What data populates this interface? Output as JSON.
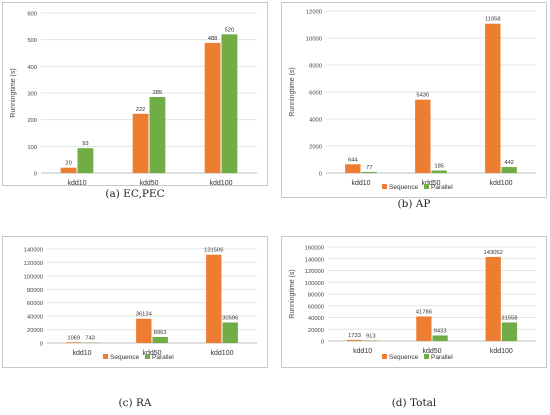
{
  "colors": {
    "sequence": "#ED7D31",
    "parallel": "#70AD47"
  },
  "chart_data": [
    {
      "type": "bar",
      "caption": "(a)  EC,PEC",
      "ylabel": "Runningtime (s)",
      "categories": [
        "kdd10",
        "kdd50",
        "kdd100"
      ],
      "ylim": [
        0,
        600
      ],
      "ytick_step": 100,
      "yticks": [
        "0",
        "100",
        "200",
        "300",
        "400",
        "500",
        "600"
      ],
      "legend": "none",
      "series": [
        {
          "name": "Sequence",
          "values": [
            20,
            222,
            488
          ]
        },
        {
          "name": "Parallel",
          "values": [
            93,
            285,
            520
          ]
        }
      ]
    },
    {
      "type": "bar",
      "caption": "(b)  AP",
      "ylabel": "Runningtime (s)",
      "categories": [
        "kdd10",
        "kdd50",
        "kdd100"
      ],
      "ylim": [
        0,
        12000
      ],
      "ytick_step": 2000,
      "yticks": [
        "0",
        "2000",
        "4000",
        "6000",
        "8000",
        "10000",
        "12000"
      ],
      "legend": "bottom",
      "legend_labels": [
        "Sequence",
        "Parallel"
      ],
      "series": [
        {
          "name": "Sequence",
          "values": [
            644,
            5430,
            11058
          ]
        },
        {
          "name": "Parallel",
          "values": [
            77,
            185,
            442
          ]
        }
      ]
    },
    {
      "type": "bar",
      "caption": "(c)  RA",
      "ylabel": "",
      "categories": [
        "kdd10",
        "kdd50",
        "kdd100"
      ],
      "ylim": [
        0,
        140000
      ],
      "ytick_step": 20000,
      "yticks": [
        "0",
        "20000",
        "40000",
        "60000",
        "80000",
        "100000",
        "120000",
        "140000"
      ],
      "legend": "bottom",
      "legend_labels": [
        "Sequence",
        "Parallel"
      ],
      "series": [
        {
          "name": "Sequence",
          "values": [
            1069,
            36134,
            131506
          ]
        },
        {
          "name": "Parallel",
          "values": [
            743,
            8963,
            30596
          ]
        }
      ]
    },
    {
      "type": "bar",
      "caption": "(d)  Total",
      "ylabel": "Runningtime (s)",
      "categories": [
        "kdd10",
        "kdd50",
        "kdd100"
      ],
      "ylim": [
        0,
        160000
      ],
      "ytick_step": 20000,
      "yticks": [
        "0",
        "20000",
        "40000",
        "60000",
        "80000",
        "100000",
        "120000",
        "140000",
        "160000"
      ],
      "legend": "bottom",
      "legend_labels": [
        "Sequence",
        "Parallel"
      ],
      "series": [
        {
          "name": "Sequence",
          "values": [
            1733,
            41786,
            143052
          ]
        },
        {
          "name": "Parallel",
          "values": [
            913,
            9433,
            31558
          ]
        }
      ]
    }
  ]
}
